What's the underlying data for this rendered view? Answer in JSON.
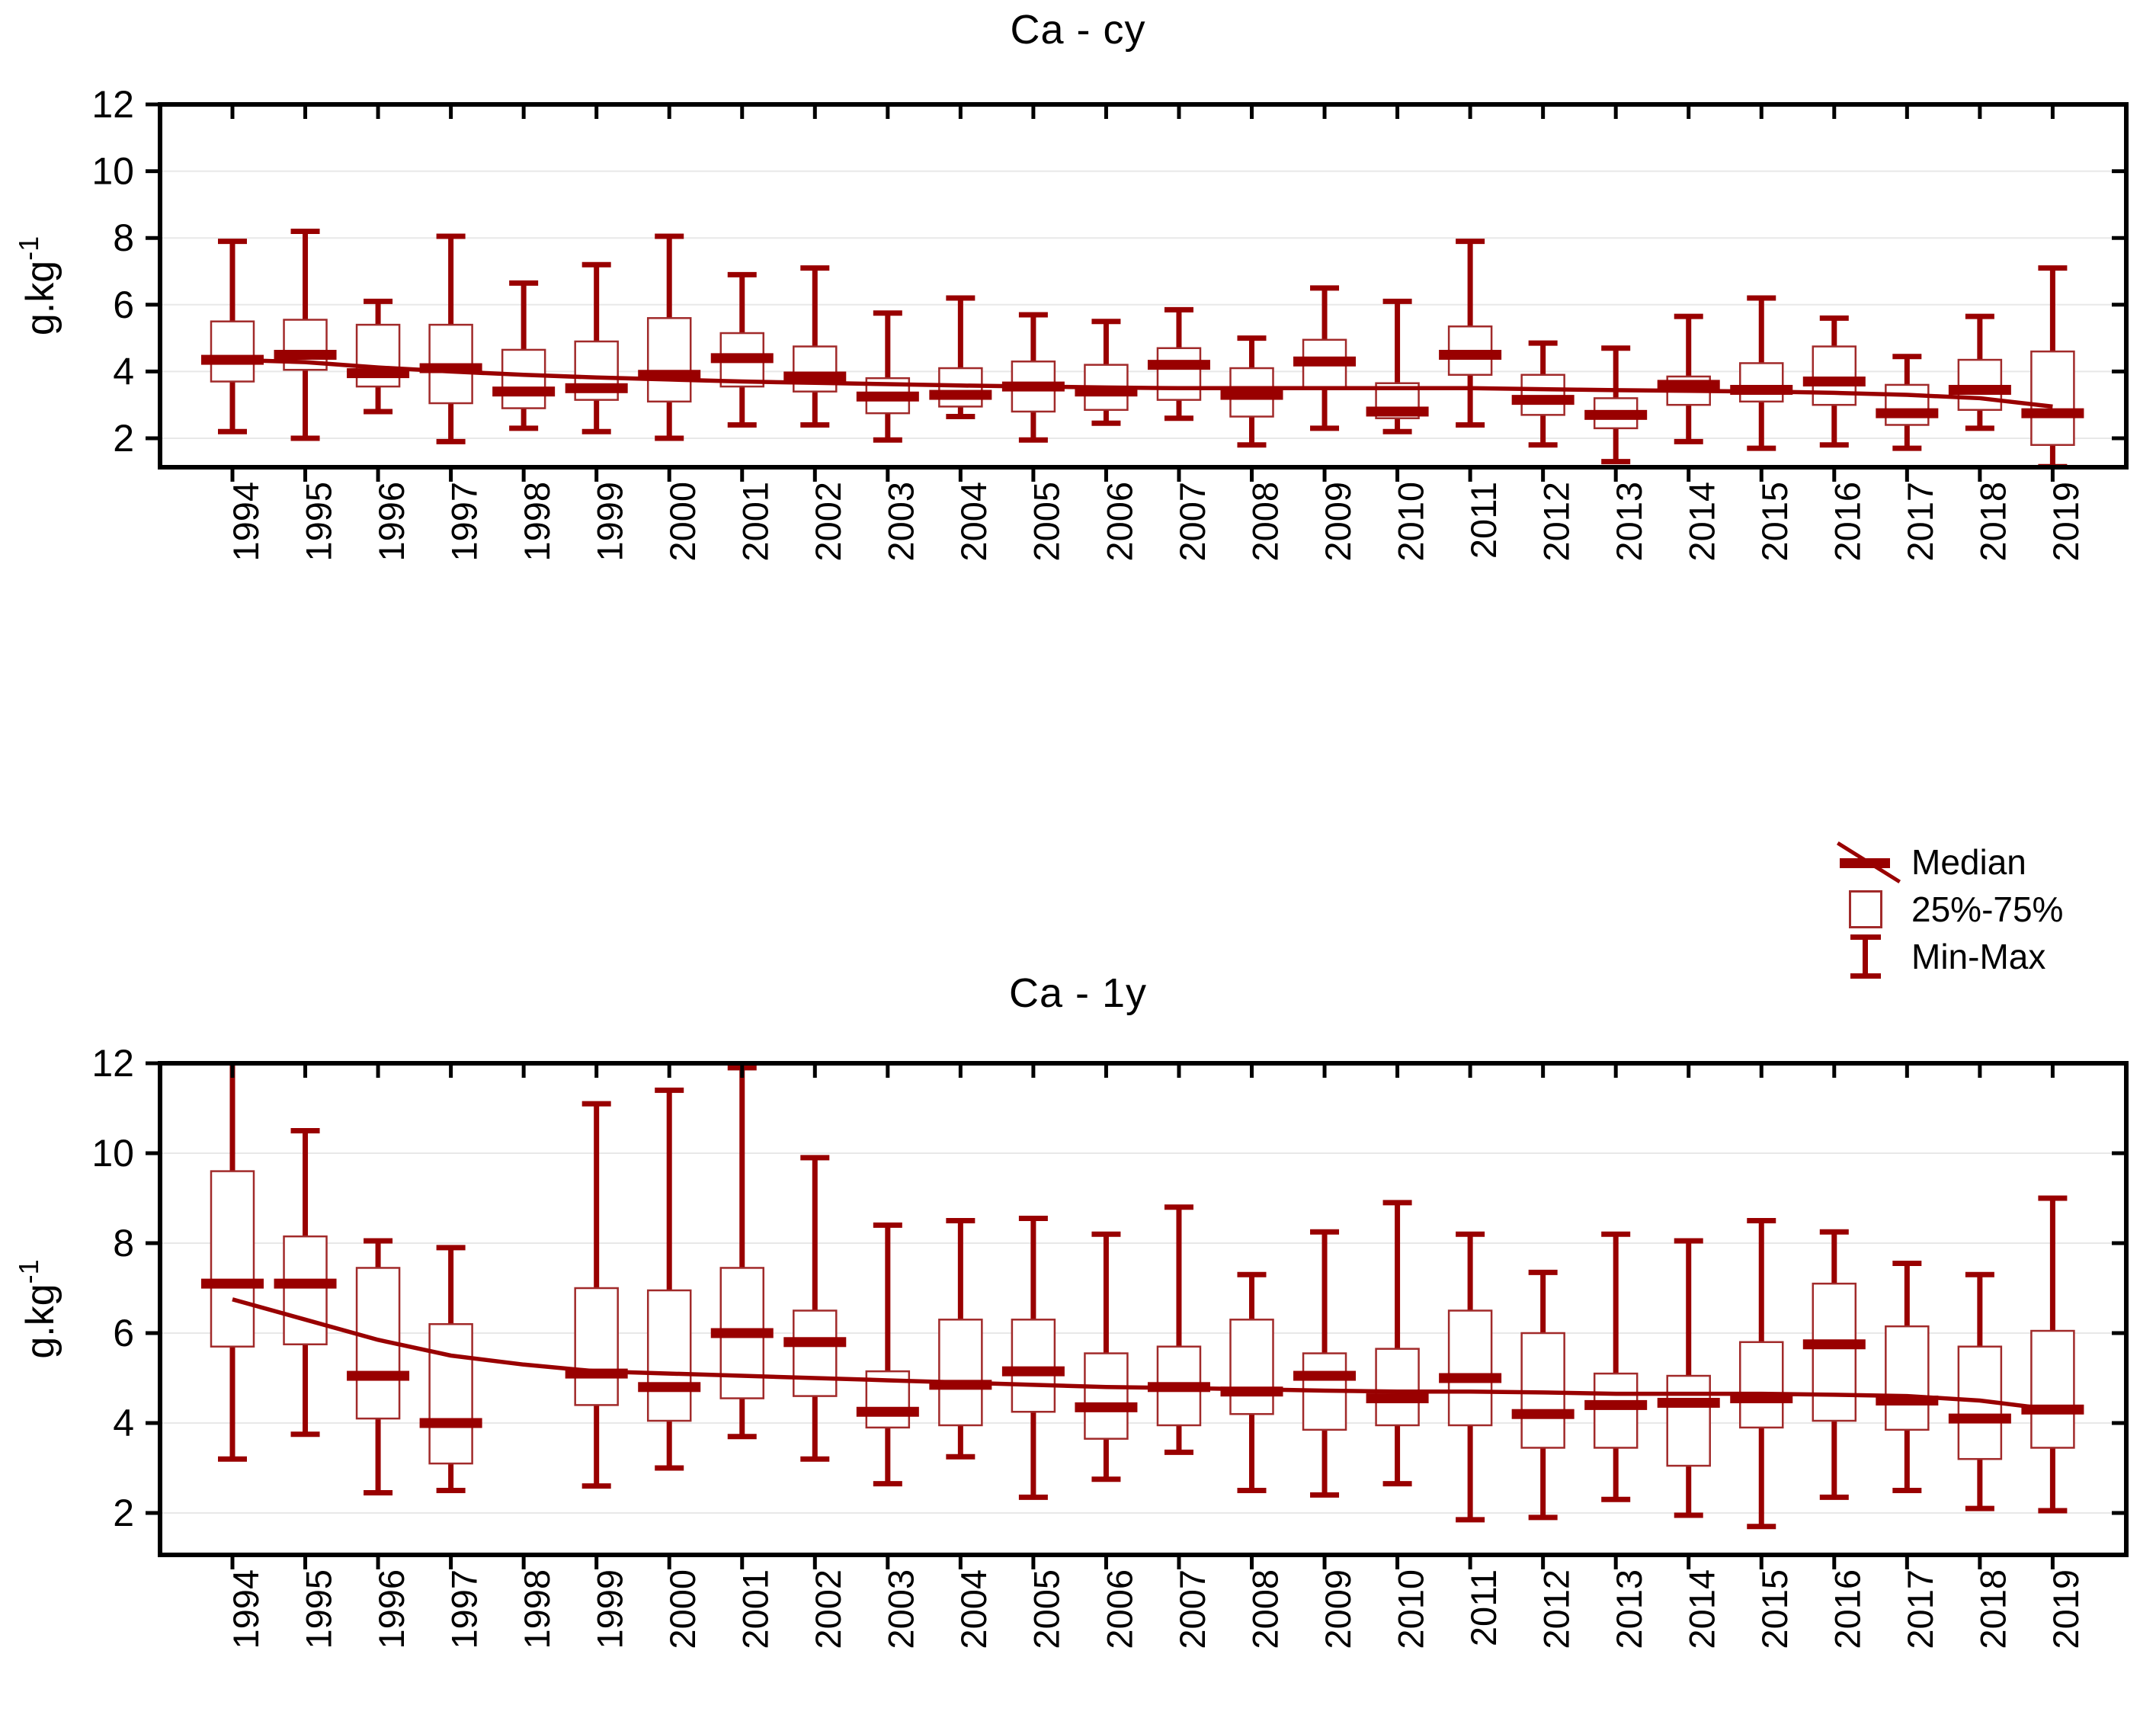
{
  "colors": {
    "accent": "#990000",
    "box_border": "#a12a2a",
    "grid": "#e8e8e8",
    "axis": "#000000",
    "background": "#ffffff",
    "text": "#000000"
  },
  "legend": {
    "items": [
      {
        "id": "median",
        "label": "Median"
      },
      {
        "id": "box2575",
        "label": "25%-75%"
      },
      {
        "id": "minmax",
        "label": "Min-Max"
      }
    ]
  },
  "chart_data": [
    {
      "type": "box",
      "title": "Ca - cy",
      "ylabel": "g.kg",
      "ylabel_sup": "-1",
      "yticks": [
        12,
        10,
        8,
        6,
        4,
        2
      ],
      "ylim": [
        1.1,
        12
      ],
      "grid": true,
      "categories": [
        "1994",
        "1995",
        "1996",
        "1997",
        "1998",
        "1999",
        "2000",
        "2001",
        "2002",
        "2003",
        "2004",
        "2005",
        "2006",
        "2007",
        "2008",
        "2009",
        "2010",
        "2011",
        "2012",
        "2013",
        "2014",
        "2015",
        "2016",
        "2017",
        "2018",
        "2019"
      ],
      "series": [
        {
          "name": "min",
          "values": [
            2.2,
            2.0,
            2.8,
            1.9,
            2.3,
            2.2,
            2.0,
            2.4,
            2.4,
            1.95,
            2.65,
            1.95,
            2.45,
            2.6,
            1.8,
            2.3,
            2.2,
            2.4,
            1.8,
            1.3,
            1.9,
            1.7,
            1.8,
            1.7,
            2.3,
            1.15
          ]
        },
        {
          "name": "q1",
          "values": [
            3.7,
            4.05,
            3.55,
            3.05,
            2.9,
            3.15,
            3.1,
            3.55,
            3.4,
            2.75,
            2.95,
            2.8,
            2.85,
            3.15,
            2.65,
            3.5,
            2.6,
            3.9,
            2.7,
            2.3,
            3.0,
            3.1,
            3.0,
            2.4,
            2.85,
            1.8
          ]
        },
        {
          "name": "median",
          "values": [
            4.35,
            4.5,
            3.95,
            4.1,
            3.4,
            3.5,
            3.9,
            4.4,
            3.85,
            3.25,
            3.3,
            3.55,
            3.4,
            4.2,
            3.3,
            4.3,
            2.8,
            4.5,
            3.15,
            2.7,
            3.6,
            3.45,
            3.7,
            2.75,
            3.45,
            2.75
          ]
        },
        {
          "name": "q3",
          "values": [
            5.5,
            5.55,
            5.4,
            5.4,
            4.65,
            4.9,
            5.6,
            5.15,
            4.75,
            3.8,
            4.1,
            4.3,
            4.2,
            4.7,
            4.1,
            4.95,
            3.65,
            5.35,
            3.9,
            3.2,
            3.85,
            4.25,
            4.75,
            3.6,
            4.35,
            4.6
          ]
        },
        {
          "name": "max",
          "values": [
            7.9,
            8.2,
            6.1,
            8.05,
            6.65,
            7.2,
            8.05,
            6.9,
            7.1,
            5.75,
            6.2,
            5.7,
            5.5,
            5.85,
            5.0,
            6.5,
            6.1,
            7.9,
            4.85,
            4.7,
            5.65,
            6.2,
            5.6,
            4.45,
            5.65,
            7.1
          ]
        }
      ],
      "trend": [
        4.35,
        4.28,
        4.12,
        4.0,
        3.9,
        3.82,
        3.76,
        3.7,
        3.66,
        3.62,
        3.58,
        3.55,
        3.52,
        3.5,
        3.5,
        3.5,
        3.5,
        3.5,
        3.47,
        3.44,
        3.42,
        3.4,
        3.36,
        3.3,
        3.2,
        2.95
      ]
    },
    {
      "type": "box",
      "title": "Ca - 1y",
      "ylabel": "g.kg",
      "ylabel_sup": "-1",
      "yticks": [
        12,
        10,
        8,
        6,
        4,
        2
      ],
      "ylim": [
        1.05,
        12
      ],
      "grid": true,
      "categories": [
        "1994",
        "1995",
        "1996",
        "1997",
        "1998",
        "1999",
        "2000",
        "2001",
        "2002",
        "2003",
        "2004",
        "2005",
        "2006",
        "2007",
        "2008",
        "2009",
        "2010",
        "2011",
        "2012",
        "2013",
        "2014",
        "2015",
        "2016",
        "2017",
        "2018",
        "2019"
      ],
      "series": [
        {
          "name": "min",
          "values": [
            3.2,
            3.75,
            2.45,
            2.5,
            null,
            2.6,
            3.0,
            3.7,
            3.2,
            2.65,
            3.25,
            2.35,
            2.75,
            3.35,
            2.5,
            2.4,
            2.65,
            1.85,
            1.9,
            2.3,
            1.95,
            1.7,
            2.35,
            2.5,
            2.1,
            2.05
          ]
        },
        {
          "name": "q1",
          "values": [
            5.7,
            5.75,
            4.1,
            3.1,
            null,
            4.4,
            4.05,
            4.55,
            4.6,
            3.9,
            3.95,
            4.25,
            3.65,
            3.95,
            4.2,
            3.85,
            3.95,
            3.95,
            3.45,
            3.45,
            3.05,
            3.9,
            4.05,
            3.85,
            3.2,
            3.45
          ]
        },
        {
          "name": "median",
          "values": [
            7.1,
            7.1,
            5.05,
            4.0,
            null,
            5.1,
            4.8,
            6.0,
            5.8,
            4.25,
            4.85,
            5.15,
            4.35,
            4.8,
            4.7,
            5.05,
            4.55,
            5.0,
            4.2,
            4.4,
            4.45,
            4.55,
            5.75,
            4.5,
            4.1,
            4.3
          ]
        },
        {
          "name": "q3",
          "values": [
            9.6,
            8.15,
            7.45,
            6.2,
            null,
            7.0,
            6.95,
            7.45,
            6.5,
            5.15,
            6.3,
            6.3,
            5.55,
            5.7,
            6.3,
            5.55,
            5.65,
            6.5,
            6.0,
            5.1,
            5.05,
            5.8,
            7.1,
            6.15,
            5.7,
            6.05
          ]
        },
        {
          "name": "max",
          "values": [
            12.0,
            10.5,
            8.05,
            7.9,
            null,
            11.1,
            11.4,
            11.9,
            9.9,
            8.4,
            8.5,
            8.55,
            8.2,
            8.8,
            7.3,
            8.25,
            8.9,
            8.2,
            7.35,
            8.2,
            8.05,
            8.5,
            8.25,
            7.55,
            7.3,
            9.0
          ]
        }
      ],
      "trend": [
        6.75,
        6.3,
        5.85,
        5.5,
        5.3,
        5.15,
        5.1,
        5.05,
        5.0,
        4.95,
        4.9,
        4.85,
        4.8,
        4.78,
        4.75,
        4.72,
        4.7,
        4.7,
        4.68,
        4.65,
        4.65,
        4.65,
        4.63,
        4.6,
        4.5,
        4.3
      ]
    }
  ]
}
